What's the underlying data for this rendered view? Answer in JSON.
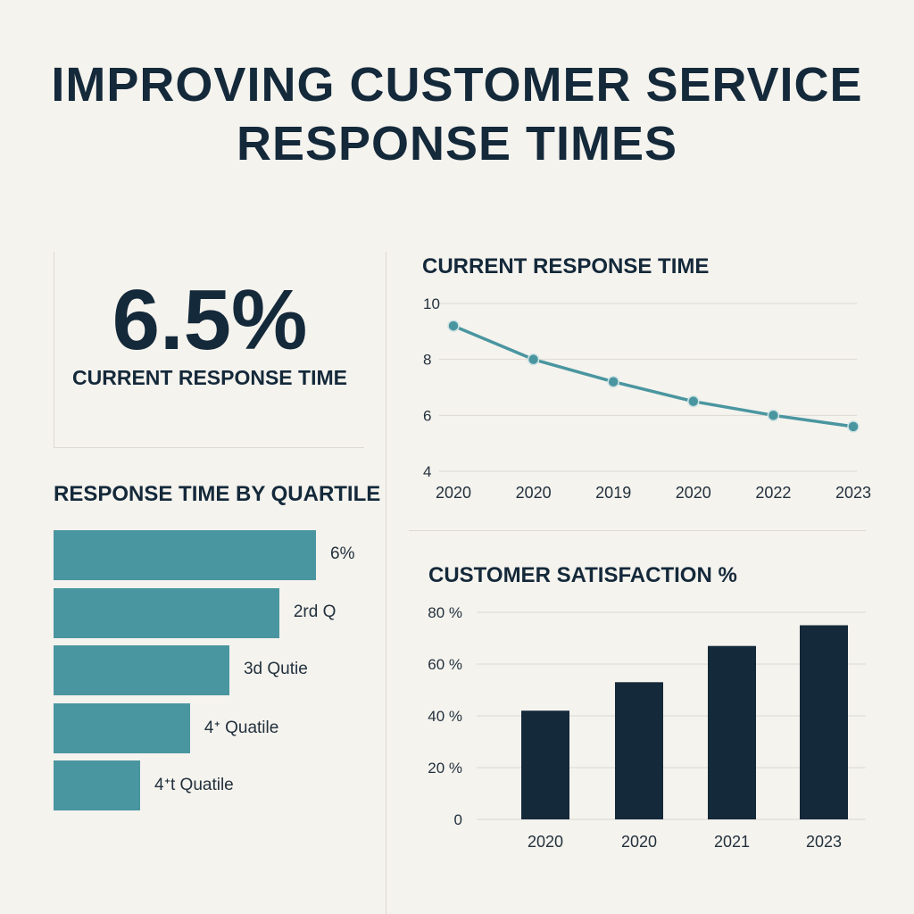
{
  "title": {
    "line1": "IMPROVING CUSTOMER SERVICE",
    "line2": "RESPONSE TIMES"
  },
  "stat": {
    "value": "6.5%",
    "label": "CURRENT RESPONSE TIME"
  },
  "colors": {
    "teal": "#4a96a0",
    "navy": "#14293a",
    "background": "#f5f3ee",
    "grid": "#dcd9d2"
  },
  "chart_data": [
    {
      "type": "bar",
      "orientation": "horizontal",
      "title": "RESPONSE TIME BY QUARTILE",
      "categories": [
        "6%",
        "2rd Q",
        "3d Qutie",
        "4ᐩ Quatile",
        "4ᐩt Quatile"
      ],
      "values": [
        100,
        86,
        67,
        52,
        33
      ],
      "grid": false
    },
    {
      "type": "line",
      "title": "CURRENT RESPONSE TIME",
      "x": [
        "2020",
        "2020",
        "2019",
        "2020",
        "2022",
        "2023"
      ],
      "y": [
        9.2,
        8.0,
        7.2,
        6.5,
        6.0,
        5.6
      ],
      "ylim": [
        4,
        10
      ],
      "yticks": [
        4,
        6,
        8,
        10
      ],
      "grid": true
    },
    {
      "type": "bar",
      "title": "CUSTOMER SATISFACTION %",
      "categories": [
        "2020",
        "2020",
        "2021",
        "2023"
      ],
      "values": [
        42,
        53,
        67,
        75
      ],
      "ylim": [
        0,
        80
      ],
      "yticks": [
        "0",
        "20 %",
        "40 %",
        "60 %",
        "80 %"
      ],
      "grid": true
    }
  ]
}
